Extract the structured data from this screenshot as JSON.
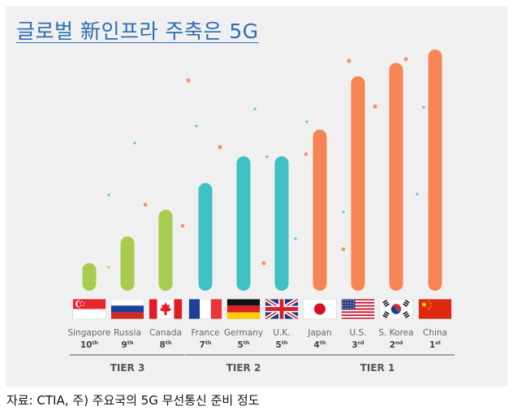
{
  "title": "글로벌 新인프라 주축은 5G",
  "source": "자료: CTIA, 주) 주요국의 5G 무선통신 준비 정도",
  "colors": {
    "tier3": "#a7cc4e",
    "tier2": "#3fc0c4",
    "tier1": "#f58552",
    "text": "#666666",
    "rank": "#444444"
  },
  "chart_data": {
    "type": "bar",
    "categories": [
      "Singapore",
      "Russia",
      "Canada",
      "France",
      "Germany",
      "U.K.",
      "Japan",
      "U.S.",
      "S. Korea",
      "China"
    ],
    "rank_labels": [
      {
        "num": "10",
        "suffix": "th"
      },
      {
        "num": "9",
        "suffix": "th"
      },
      {
        "num": "8",
        "suffix": "th"
      },
      {
        "num": "7",
        "suffix": "th"
      },
      {
        "num": "5",
        "suffix": "th"
      },
      {
        "num": "5",
        "suffix": "th"
      },
      {
        "num": "4",
        "suffix": "th"
      },
      {
        "num": "3",
        "suffix": "rd"
      },
      {
        "num": "2",
        "suffix": "nd"
      },
      {
        "num": "1",
        "suffix": "st"
      }
    ],
    "values": [
      1,
      2,
      3,
      4,
      5,
      5,
      6,
      8,
      8.5,
      9
    ],
    "ylim": [
      0,
      9
    ],
    "tiers": [
      {
        "label": "TIER 3",
        "categories": [
          "Singapore",
          "Russia",
          "Canada"
        ],
        "color": "#a7cc4e"
      },
      {
        "label": "TIER 2",
        "categories": [
          "France",
          "Germany",
          "U.K."
        ],
        "color": "#3fc0c4"
      },
      {
        "label": "TIER 1",
        "categories": [
          "Japan",
          "U.S.",
          "S. Korea",
          "China"
        ],
        "color": "#f58552"
      }
    ],
    "flags": [
      "singapore-flag",
      "russia-flag",
      "canada-flag",
      "france-flag",
      "germany-flag",
      "uk-flag",
      "japan-flag",
      "us-flag",
      "south-korea-flag",
      "china-flag"
    ],
    "grid": false,
    "legend": "none"
  }
}
